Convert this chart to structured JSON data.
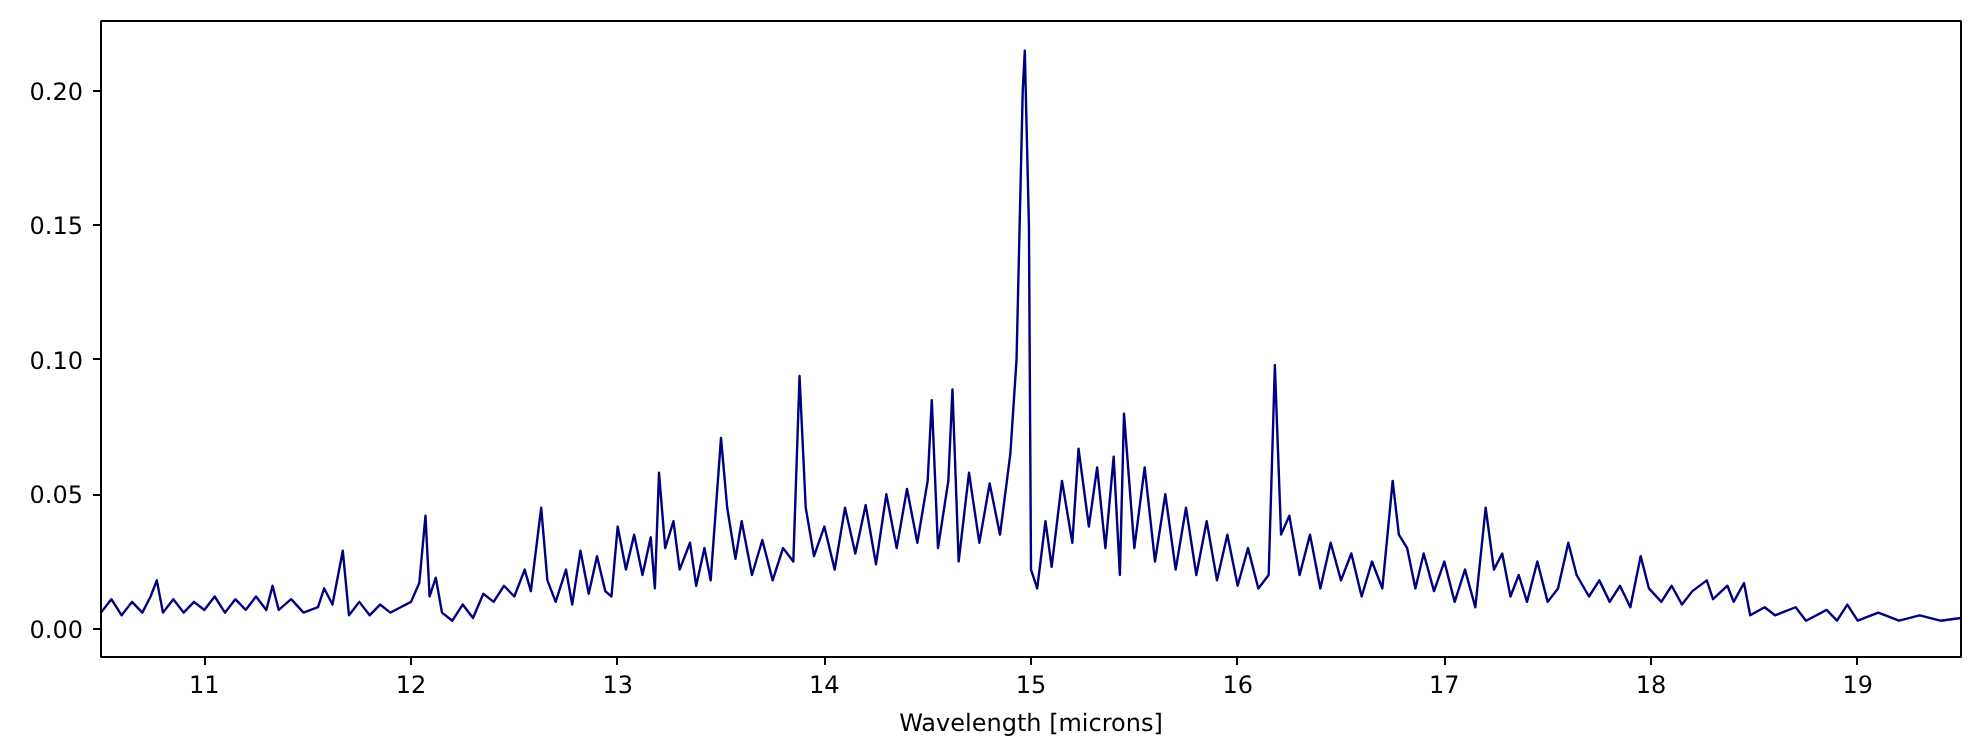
{
  "chart_data": {
    "type": "line",
    "xlabel": "Wavelength [microns]",
    "xlim": [
      10.5,
      19.5
    ],
    "xticks": [
      11,
      12,
      13,
      14,
      15,
      16,
      17,
      18,
      19
    ],
    "ylim": [
      -0.0105,
      0.226
    ],
    "yticks": [
      {
        "value": 0,
        "label": "0.00"
      },
      {
        "value": 0.05,
        "label": "0.05"
      },
      {
        "value": 0.1,
        "label": "0.10"
      },
      {
        "value": 0.15,
        "label": "0.15"
      },
      {
        "value": 0.2,
        "label": "0.20"
      }
    ],
    "grid": false,
    "marker": "none",
    "line_style": "solid",
    "series": [
      {
        "color": "#000080",
        "x": [
          10.5,
          10.55,
          10.6,
          10.65,
          10.7,
          10.74,
          10.77,
          10.8,
          10.85,
          10.9,
          10.95,
          11.0,
          11.05,
          11.1,
          11.15,
          11.2,
          11.25,
          11.3,
          11.33,
          11.36,
          11.42,
          11.48,
          11.55,
          11.58,
          11.62,
          11.67,
          11.7,
          11.75,
          11.8,
          11.85,
          11.9,
          11.95,
          12.0,
          12.04,
          12.07,
          12.09,
          12.12,
          12.15,
          12.2,
          12.25,
          12.3,
          12.35,
          12.4,
          12.45,
          12.5,
          12.55,
          12.58,
          12.63,
          12.66,
          12.7,
          12.75,
          12.78,
          12.82,
          12.86,
          12.9,
          12.94,
          12.97,
          13.0,
          13.04,
          13.08,
          13.12,
          13.16,
          13.18,
          13.2,
          13.23,
          13.27,
          13.3,
          13.35,
          13.38,
          13.42,
          13.45,
          13.5,
          13.53,
          13.57,
          13.6,
          13.65,
          13.7,
          13.75,
          13.8,
          13.85,
          13.88,
          13.91,
          13.95,
          14.0,
          14.05,
          14.1,
          14.15,
          14.2,
          14.25,
          14.3,
          14.35,
          14.4,
          14.45,
          14.5,
          14.52,
          14.55,
          14.6,
          14.62,
          14.65,
          14.7,
          14.75,
          14.8,
          14.85,
          14.9,
          14.93,
          14.96,
          14.97,
          14.99,
          15.0,
          15.03,
          15.07,
          15.1,
          15.15,
          15.2,
          15.23,
          15.28,
          15.32,
          15.36,
          15.4,
          15.43,
          15.45,
          15.5,
          15.55,
          15.6,
          15.65,
          15.7,
          15.75,
          15.8,
          15.85,
          15.9,
          15.95,
          16.0,
          16.05,
          16.1,
          16.15,
          16.18,
          16.21,
          16.25,
          16.3,
          16.35,
          16.4,
          16.45,
          16.5,
          16.55,
          16.6,
          16.65,
          16.7,
          16.75,
          16.78,
          16.82,
          16.86,
          16.9,
          16.95,
          17.0,
          17.05,
          17.1,
          17.15,
          17.2,
          17.24,
          17.28,
          17.32,
          17.36,
          17.4,
          17.45,
          17.5,
          17.55,
          17.6,
          17.64,
          17.7,
          17.75,
          17.8,
          17.85,
          17.9,
          17.95,
          17.99,
          18.05,
          18.1,
          18.15,
          18.2,
          18.27,
          18.3,
          18.37,
          18.4,
          18.45,
          18.48,
          18.55,
          18.6,
          18.7,
          18.75,
          18.85,
          18.9,
          18.95,
          19.0,
          19.1,
          19.2,
          19.3,
          19.4,
          19.5
        ],
        "values": [
          0.006,
          0.011,
          0.005,
          0.01,
          0.006,
          0.012,
          0.018,
          0.006,
          0.011,
          0.006,
          0.01,
          0.007,
          0.012,
          0.006,
          0.011,
          0.007,
          0.012,
          0.007,
          0.016,
          0.007,
          0.011,
          0.006,
          0.008,
          0.015,
          0.009,
          0.029,
          0.005,
          0.01,
          0.005,
          0.009,
          0.006,
          0.008,
          0.01,
          0.017,
          0.042,
          0.012,
          0.019,
          0.006,
          0.003,
          0.009,
          0.004,
          0.013,
          0.01,
          0.016,
          0.012,
          0.022,
          0.014,
          0.045,
          0.018,
          0.01,
          0.022,
          0.009,
          0.029,
          0.013,
          0.027,
          0.014,
          0.012,
          0.038,
          0.022,
          0.035,
          0.02,
          0.034,
          0.015,
          0.058,
          0.03,
          0.04,
          0.022,
          0.032,
          0.016,
          0.03,
          0.018,
          0.071,
          0.045,
          0.026,
          0.04,
          0.02,
          0.033,
          0.018,
          0.03,
          0.025,
          0.094,
          0.045,
          0.027,
          0.038,
          0.022,
          0.045,
          0.028,
          0.046,
          0.024,
          0.05,
          0.03,
          0.052,
          0.032,
          0.055,
          0.085,
          0.03,
          0.055,
          0.089,
          0.025,
          0.058,
          0.032,
          0.054,
          0.035,
          0.065,
          0.1,
          0.2,
          0.215,
          0.15,
          0.022,
          0.015,
          0.04,
          0.023,
          0.055,
          0.032,
          0.067,
          0.038,
          0.06,
          0.03,
          0.064,
          0.02,
          0.08,
          0.03,
          0.06,
          0.025,
          0.05,
          0.022,
          0.045,
          0.02,
          0.04,
          0.018,
          0.035,
          0.016,
          0.03,
          0.015,
          0.02,
          0.098,
          0.035,
          0.042,
          0.02,
          0.035,
          0.015,
          0.032,
          0.018,
          0.028,
          0.012,
          0.025,
          0.015,
          0.055,
          0.035,
          0.03,
          0.015,
          0.028,
          0.014,
          0.025,
          0.01,
          0.022,
          0.008,
          0.045,
          0.022,
          0.028,
          0.012,
          0.02,
          0.01,
          0.025,
          0.01,
          0.015,
          0.032,
          0.02,
          0.012,
          0.018,
          0.01,
          0.016,
          0.008,
          0.027,
          0.015,
          0.01,
          0.016,
          0.009,
          0.014,
          0.018,
          0.011,
          0.016,
          0.01,
          0.017,
          0.005,
          0.008,
          0.005,
          0.008,
          0.003,
          0.007,
          0.003,
          0.009,
          0.003,
          0.006,
          0.003,
          0.005,
          0.003,
          0.004
        ]
      }
    ]
  }
}
